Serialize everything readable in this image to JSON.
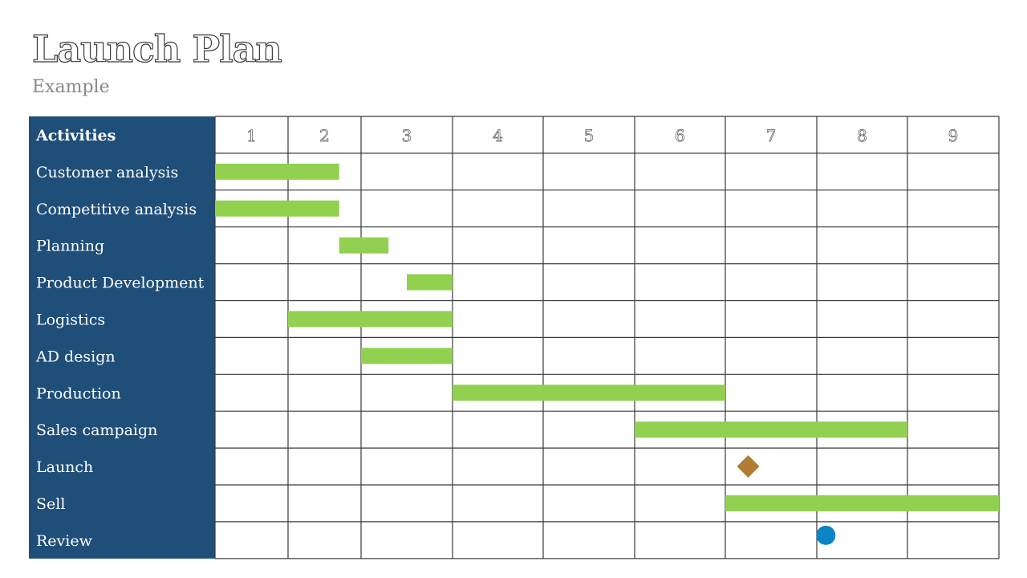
{
  "slide": {
    "title": "Launch Plan",
    "subtitle": "Example"
  },
  "chart_data": {
    "type": "gantt",
    "header_label": "Activities",
    "periods": [
      "1",
      "2",
      "3",
      "4",
      "5",
      "6",
      "7",
      "8",
      "9"
    ],
    "bar_color": "#92d050",
    "label_column_color": "#1f4e79",
    "grid": true,
    "tasks": [
      {
        "name": "Customer analysis",
        "start": 1.0,
        "end": 2.7
      },
      {
        "name": "Competitive analysis",
        "start": 1.0,
        "end": 2.7
      },
      {
        "name": "Planning",
        "start": 2.7,
        "end": 3.3
      },
      {
        "name": "Product Development",
        "start": 3.5,
        "end": 4.0
      },
      {
        "name": "Logistics",
        "start": 2.0,
        "end": 4.0
      },
      {
        "name": "AD design",
        "start": 3.0,
        "end": 4.0
      },
      {
        "name": "Production",
        "start": 4.0,
        "end": 7.0
      },
      {
        "name": "Sales campaign",
        "start": 6.0,
        "end": 9.0
      },
      {
        "name": "Sell",
        "start": 7.0,
        "end": 10.0
      }
    ],
    "milestones": [
      {
        "name": "Launch",
        "at": 7.25,
        "shape": "diamond",
        "color": "#b07d32"
      },
      {
        "name": "Review",
        "at": 8.1,
        "shape": "circle",
        "color": "#0b84c4"
      }
    ]
  }
}
